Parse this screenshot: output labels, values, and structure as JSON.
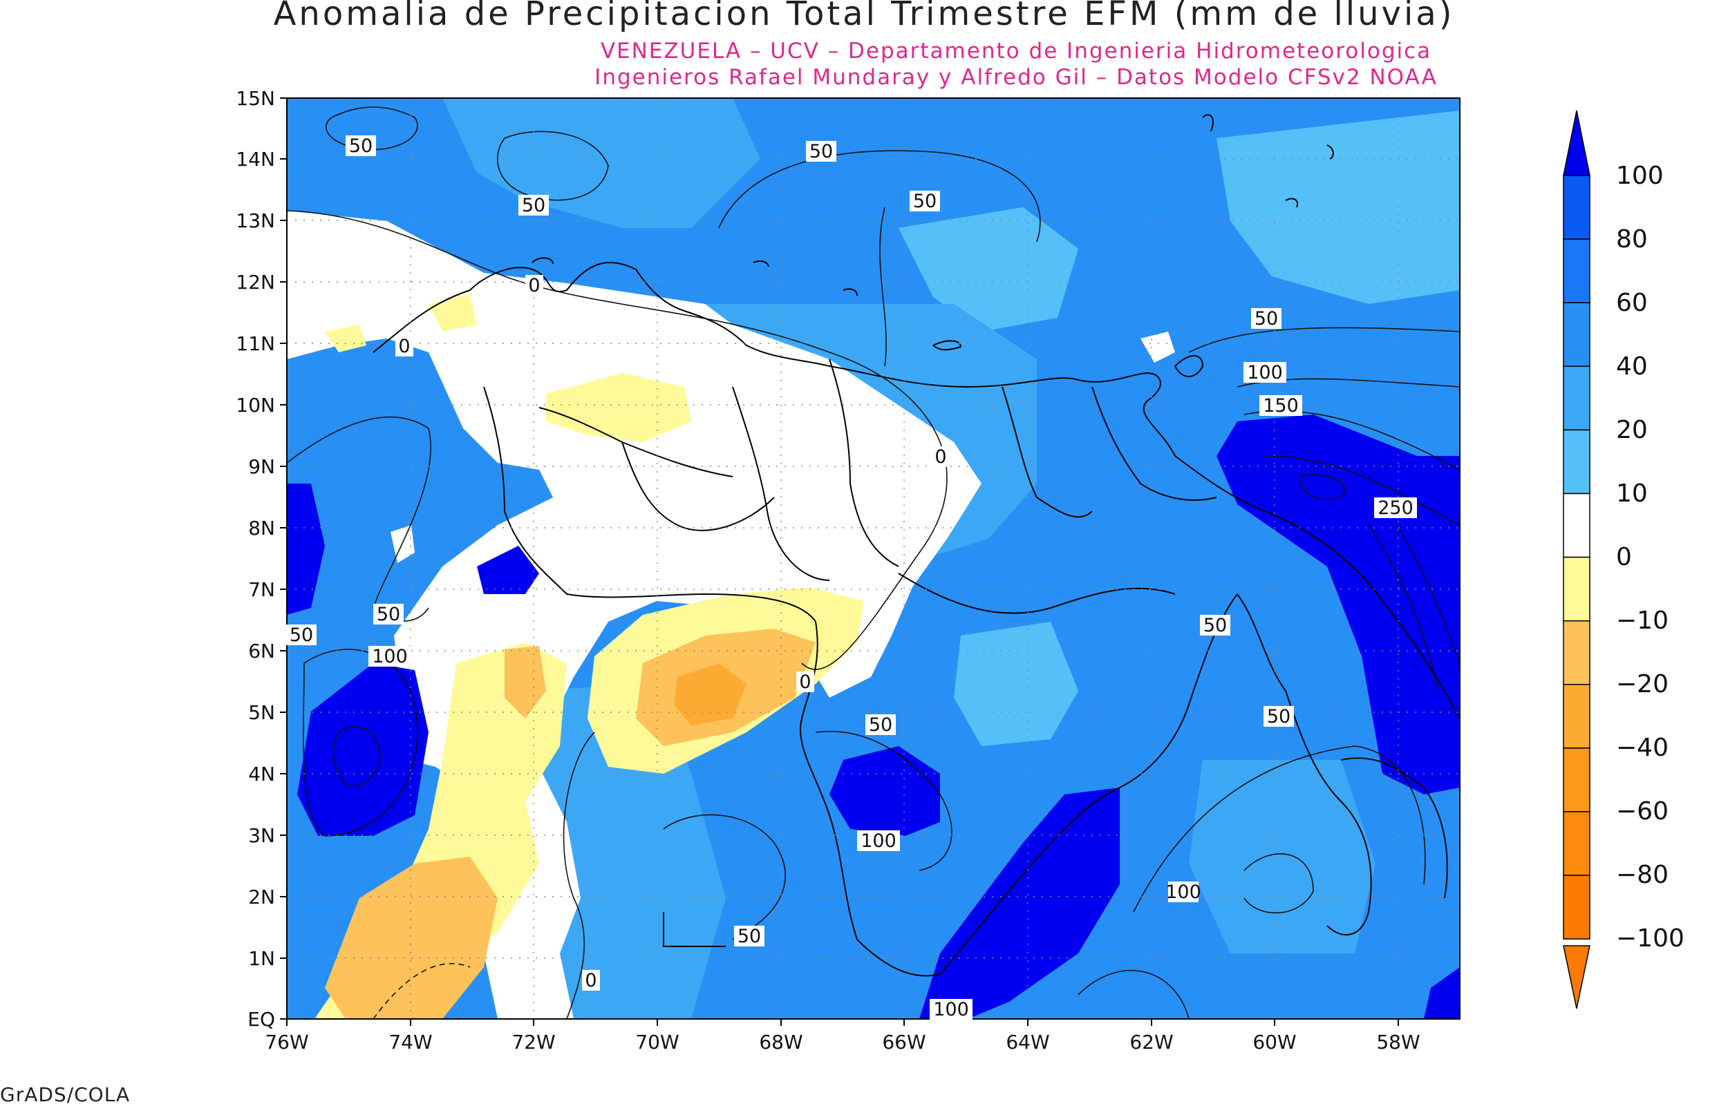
{
  "header": {
    "title": "Anomalia de Precipitacion Total Trimestre EFM (mm de lluvia)",
    "subtitle_1": "VENEZUELA – UCV – Departamento de Ingenieria Hidrometeorologica",
    "subtitle_2": "Ingenieros Rafael Mundaray y Alfredo Gil – Datos Modelo CFSv2 NOAA"
  },
  "footer": {
    "credit": "GrADS/COLA"
  },
  "map": {
    "lat_labels": [
      "15N",
      "14N",
      "13N",
      "12N",
      "11N",
      "10N",
      "9N",
      "8N",
      "7N",
      "6N",
      "5N",
      "4N",
      "3N",
      "2N",
      "1N",
      "EQ"
    ],
    "lon_labels": [
      "76W",
      "74W",
      "72W",
      "70W",
      "68W",
      "66W",
      "64W",
      "62W",
      "60W",
      "58W"
    ],
    "contour_labels": [
      "50",
      "50",
      "50",
      "50",
      "0",
      "0",
      "50",
      "100",
      "150",
      "250",
      "50",
      "50",
      "100",
      "0",
      "50",
      "100",
      "50",
      "100",
      "50",
      "50",
      "0",
      "0",
      "100"
    ],
    "colors": {
      "deep_blue": "#0000f0",
      "blue_80": "#0a5af5",
      "blue_60": "#1878f5",
      "blue_40": "#2890f5",
      "blue_20": "#3ca8f5",
      "light_blue": "#55c0f8",
      "white": "#ffffff",
      "yellow": "#fefa9a",
      "orange_light": "#fdc25a",
      "orange": "#fdaa32"
    }
  },
  "colorbar": {
    "labels": [
      "100",
      "80",
      "60",
      "40",
      "20",
      "10",
      "0",
      "−10",
      "−20",
      "−40",
      "−60",
      "−80",
      "−100"
    ],
    "colors": [
      "#0a5af5",
      "#1878f5",
      "#2890f5",
      "#3ca8f5",
      "#55c0f8",
      "#ffffff",
      "#fefa9a",
      "#fdc25a",
      "#fdaa32",
      "#fd9a1a",
      "#fd8a0a",
      "#fd7a00"
    ],
    "top_color": "#0000f0",
    "bottom_color": "#fd7a00"
  }
}
